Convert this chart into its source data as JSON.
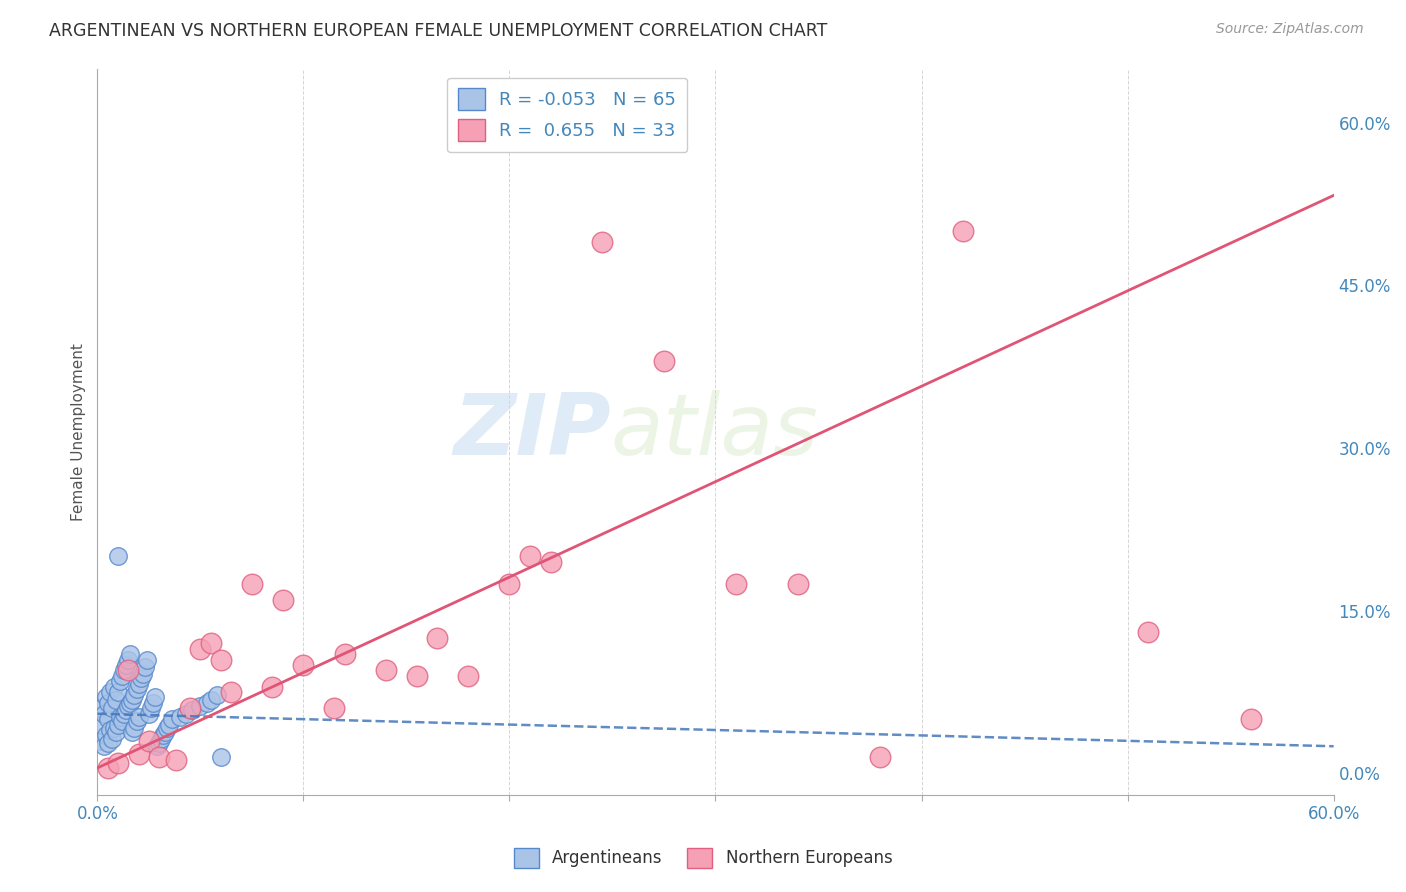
{
  "title": "ARGENTINEAN VS NORTHERN EUROPEAN FEMALE UNEMPLOYMENT CORRELATION CHART",
  "source": "Source: ZipAtlas.com",
  "ylabel": "Female Unemployment",
  "xlim": [
    0.0,
    0.6
  ],
  "ylim": [
    -0.02,
    0.65
  ],
  "x_ticks": [
    0.0,
    0.1,
    0.2,
    0.3,
    0.4,
    0.5,
    0.6
  ],
  "x_tick_labels_shown": [
    "0.0%",
    "",
    "",
    "",
    "",
    "",
    "60.0%"
  ],
  "y_ticks_right": [
    0.0,
    0.15,
    0.3,
    0.45,
    0.6
  ],
  "y_tick_labels_right": [
    "0.0%",
    "15.0%",
    "30.0%",
    "45.0%",
    "60.0%"
  ],
  "argentineans_color": "#aac4e8",
  "northern_europeans_color": "#f5a0b5",
  "argentineans_edge_color": "#5588cc",
  "northern_europeans_edge_color": "#e06080",
  "blue_line_color": "#4477bb",
  "pink_line_color": "#e05575",
  "legend_R_argentineans": "-0.053",
  "legend_N_argentineans": "65",
  "legend_R_northern": "0.655",
  "legend_N_northern": "33",
  "watermark_zip": "ZIP",
  "watermark_atlas": "atlas",
  "background_color": "#ffffff",
  "arg_R": -0.053,
  "arg_N": 65,
  "nor_R": 0.655,
  "nor_N": 33,
  "argentineans_x": [
    0.001,
    0.002,
    0.002,
    0.003,
    0.003,
    0.004,
    0.004,
    0.005,
    0.005,
    0.005,
    0.006,
    0.006,
    0.007,
    0.007,
    0.008,
    0.008,
    0.009,
    0.009,
    0.01,
    0.01,
    0.01,
    0.011,
    0.011,
    0.012,
    0.012,
    0.013,
    0.013,
    0.014,
    0.014,
    0.015,
    0.015,
    0.016,
    0.016,
    0.017,
    0.017,
    0.018,
    0.018,
    0.019,
    0.019,
    0.02,
    0.02,
    0.021,
    0.022,
    0.023,
    0.024,
    0.025,
    0.026,
    0.027,
    0.028,
    0.029,
    0.03,
    0.031,
    0.032,
    0.033,
    0.034,
    0.035,
    0.036,
    0.04,
    0.043,
    0.046,
    0.05,
    0.053,
    0.055,
    0.058,
    0.06
  ],
  "argentineans_y": [
    0.03,
    0.045,
    0.06,
    0.025,
    0.055,
    0.035,
    0.07,
    0.028,
    0.05,
    0.065,
    0.04,
    0.075,
    0.032,
    0.06,
    0.042,
    0.08,
    0.038,
    0.068,
    0.045,
    0.075,
    0.2,
    0.052,
    0.085,
    0.048,
    0.09,
    0.055,
    0.095,
    0.058,
    0.1,
    0.062,
    0.105,
    0.065,
    0.11,
    0.068,
    0.038,
    0.072,
    0.042,
    0.078,
    0.048,
    0.082,
    0.052,
    0.088,
    0.092,
    0.098,
    0.105,
    0.055,
    0.06,
    0.065,
    0.07,
    0.025,
    0.028,
    0.032,
    0.035,
    0.038,
    0.042,
    0.045,
    0.05,
    0.052,
    0.055,
    0.058,
    0.062,
    0.065,
    0.068,
    0.072,
    0.015
  ],
  "northern_europeans_x": [
    0.005,
    0.01,
    0.015,
    0.02,
    0.025,
    0.03,
    0.038,
    0.045,
    0.05,
    0.055,
    0.06,
    0.065,
    0.075,
    0.085,
    0.09,
    0.1,
    0.115,
    0.12,
    0.14,
    0.155,
    0.165,
    0.18,
    0.2,
    0.21,
    0.22,
    0.245,
    0.275,
    0.31,
    0.34,
    0.38,
    0.42,
    0.51,
    0.56
  ],
  "northern_europeans_y": [
    0.005,
    0.01,
    0.095,
    0.018,
    0.03,
    0.015,
    0.012,
    0.06,
    0.115,
    0.12,
    0.105,
    0.075,
    0.175,
    0.08,
    0.16,
    0.1,
    0.06,
    0.11,
    0.095,
    0.09,
    0.125,
    0.09,
    0.175,
    0.2,
    0.195,
    0.49,
    0.38,
    0.175,
    0.175,
    0.015,
    0.5,
    0.13,
    0.05
  ],
  "pink_slope": 0.88,
  "pink_intercept": 0.005,
  "blue_slope": -0.05,
  "blue_intercept": 0.055
}
